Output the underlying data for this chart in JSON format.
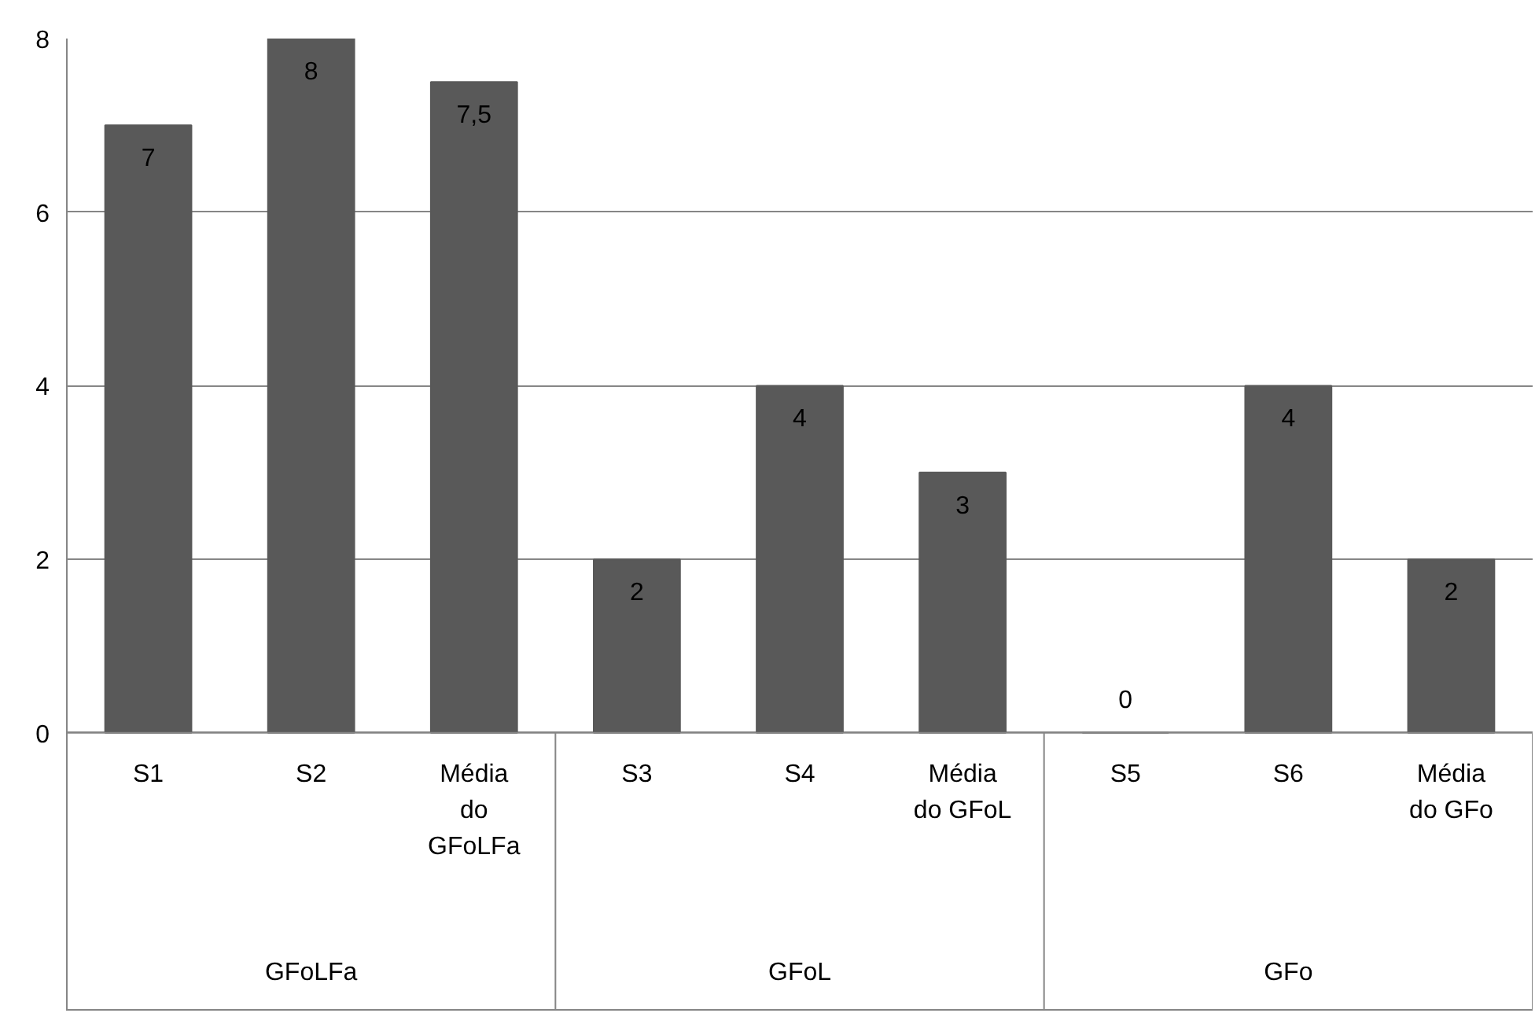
{
  "chart_data": {
    "type": "bar",
    "categories": [
      "S1",
      "S2",
      "Média do GFoLFa",
      "S3",
      "S4",
      "Média do GFoL",
      "S5",
      "S6",
      "Média do GFo"
    ],
    "values": [
      7,
      8,
      7.5,
      2,
      4,
      3,
      0,
      4,
      2
    ],
    "value_labels": [
      "7",
      "8",
      "7,5",
      "2",
      "4",
      "3",
      "0",
      "4",
      "2"
    ],
    "color": "#595959",
    "ylim": [
      0,
      8
    ],
    "yticks": [
      0,
      2,
      4,
      6,
      8
    ],
    "grid": "y",
    "annotations": [
      "GFoLFa",
      "GFoL",
      "GFo"
    ]
  }
}
